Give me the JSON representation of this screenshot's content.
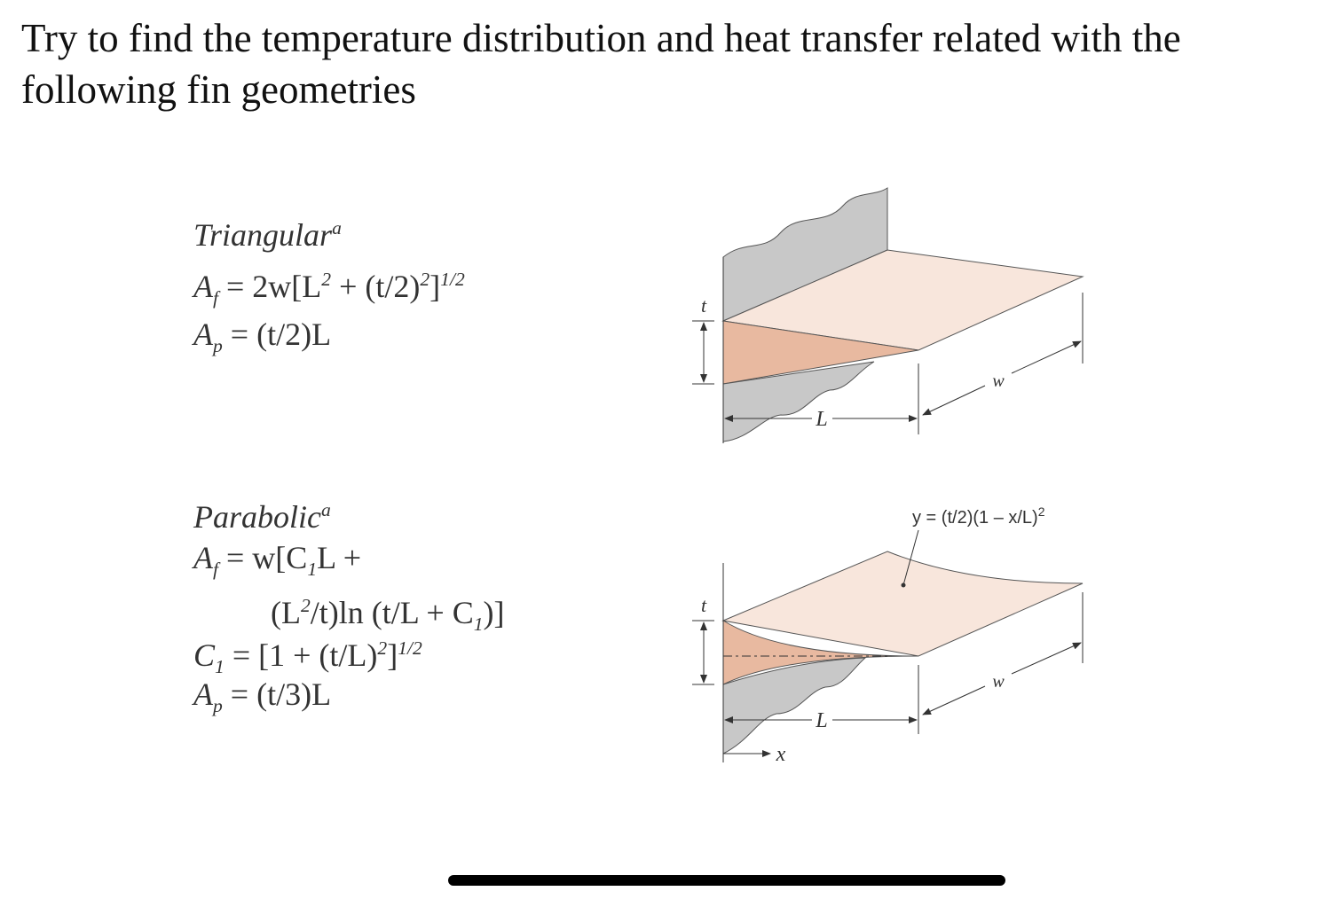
{
  "prompt": "Try to find the temperature distribution and heat transfer related with the following fin geometries",
  "fins": [
    {
      "name": "Triangular",
      "note": "a",
      "formulas": [
        [
          "A",
          "f",
          " = 2w[L",
          "2",
          " + (t/2)",
          "2",
          "]",
          "1/2"
        ],
        [
          "A",
          "p",
          " = (t/2)L"
        ]
      ],
      "labels": {
        "t": "t",
        "L": "L",
        "w": "w"
      }
    },
    {
      "name": "Parabolic",
      "note": "a",
      "formulas": [
        [
          "A",
          "f",
          " = w[C",
          "1",
          "L +"
        ],
        [
          "(L",
          "2",
          "/t)ln (t/L + C",
          "1",
          ")]"
        ],
        [
          "C",
          "1",
          " = [1 + (t/L)",
          "2",
          "]",
          "1/2"
        ],
        [
          "A",
          "p",
          " = (t/3)L"
        ]
      ],
      "labels": {
        "t": "t",
        "L": "L",
        "w": "w",
        "x": "x",
        "curve": [
          "y = (t/2)(1 – x/L)",
          "2"
        ]
      }
    }
  ]
}
